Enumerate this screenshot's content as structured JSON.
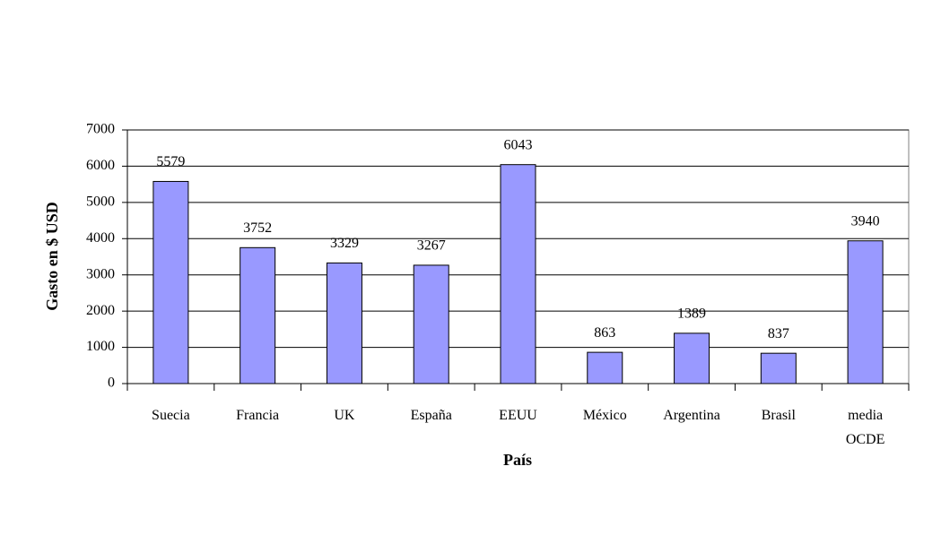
{
  "chart_data": {
    "type": "bar",
    "xlabel": "País",
    "ylabel": "Gasto en $ USD",
    "categories": [
      "Suecia",
      "Francia",
      "UK",
      "España",
      "EEUU",
      "México",
      "Argentina",
      "Brasil",
      "media OCDE"
    ],
    "values": [
      5579,
      3752,
      3329,
      3267,
      6043,
      863,
      1389,
      837,
      3940
    ],
    "color": "#9999ff",
    "ylim": [
      0,
      7000
    ],
    "yticks": [
      0,
      1000,
      2000,
      3000,
      4000,
      5000,
      6000,
      7000
    ],
    "grid": true
  }
}
